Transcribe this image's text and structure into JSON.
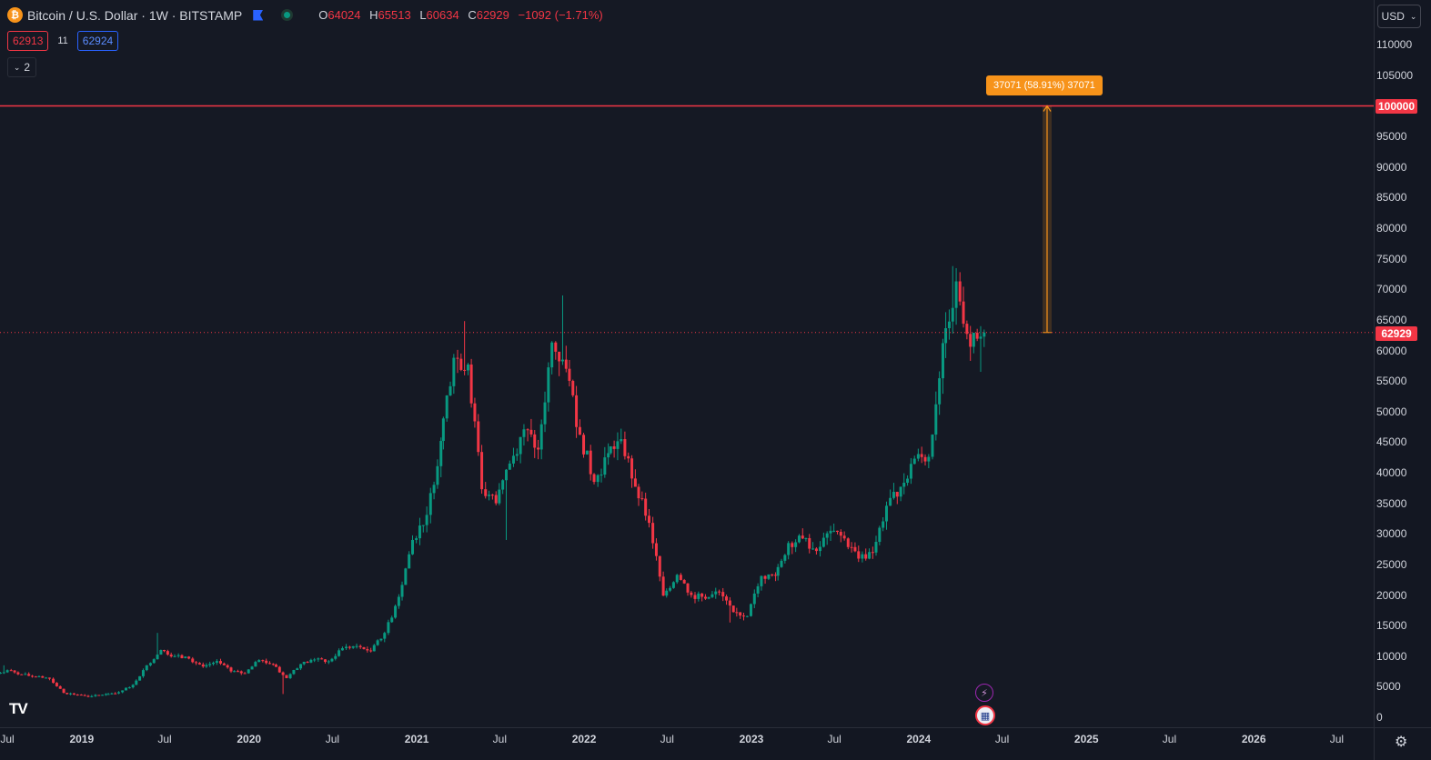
{
  "header": {
    "symbol_icon": "bitcoin-icon",
    "title": "Bitcoin / U.S. Dollar · 1W · BITSTAMP",
    "ohlc": {
      "o_label": "O",
      "o": "64024",
      "h_label": "H",
      "h": "65513",
      "l_label": "L",
      "l": "60634",
      "c_label": "C",
      "c": "62929",
      "change": "−1092 (−1.71%)"
    },
    "bid": "62913",
    "spread": "11",
    "ask": "62924",
    "indicator_count": "2"
  },
  "currency_button": "USD",
  "price_axis_labels": [
    "110000",
    "105000",
    "100000",
    "95000",
    "90000",
    "85000",
    "80000",
    "75000",
    "70000",
    "65000",
    "60000",
    "55000",
    "50000",
    "45000",
    "40000",
    "35000",
    "30000",
    "25000",
    "20000",
    "15000",
    "10000",
    "5000",
    "0"
  ],
  "hline_tag": "100000",
  "last_price_tag": "62929",
  "measure_label": "37071 (58.91%) 37071",
  "time_axis_labels": [
    {
      "text": "Jul",
      "bold": false
    },
    {
      "text": "2019",
      "bold": true
    },
    {
      "text": "Jul",
      "bold": false
    },
    {
      "text": "2020",
      "bold": true
    },
    {
      "text": "Jul",
      "bold": false
    },
    {
      "text": "2021",
      "bold": true
    },
    {
      "text": "Jul",
      "bold": false
    },
    {
      "text": "2022",
      "bold": true
    },
    {
      "text": "Jul",
      "bold": false
    },
    {
      "text": "2023",
      "bold": true
    },
    {
      "text": "Jul",
      "bold": false
    },
    {
      "text": "2024",
      "bold": true
    },
    {
      "text": "Jul",
      "bold": false
    },
    {
      "text": "2025",
      "bold": true
    },
    {
      "text": "Jul",
      "bold": false
    },
    {
      "text": "2026",
      "bold": true
    },
    {
      "text": "Jul",
      "bold": false
    }
  ],
  "logo": "TV",
  "colors": {
    "up": "#089981",
    "down": "#f23645",
    "hline": "#f23645",
    "measure": "#f7931a"
  },
  "chart_data": {
    "type": "candlestick",
    "symbol": "BTCUSD",
    "interval": "1W",
    "y_range": [
      0,
      115000
    ],
    "x_range": [
      "2018-06",
      "2026-08"
    ],
    "horizontal_line": 100000,
    "last_close": 62929,
    "measure": {
      "from": 62929,
      "to": 100000,
      "diff": 37071,
      "percent": "58.91%"
    },
    "monthly_closes": [
      {
        "t": "2018-07",
        "c": 7700
      },
      {
        "t": "2018-08",
        "c": 7000
      },
      {
        "t": "2018-09",
        "c": 6600
      },
      {
        "t": "2018-10",
        "c": 6300
      },
      {
        "t": "2018-11",
        "c": 4000
      },
      {
        "t": "2018-12",
        "c": 3700
      },
      {
        "t": "2019-01",
        "c": 3450
      },
      {
        "t": "2019-02",
        "c": 3800
      },
      {
        "t": "2019-03",
        "c": 4100
      },
      {
        "t": "2019-04",
        "c": 5300
      },
      {
        "t": "2019-05",
        "c": 8500
      },
      {
        "t": "2019-06",
        "c": 11000
      },
      {
        "t": "2019-07",
        "c": 10000
      },
      {
        "t": "2019-08",
        "c": 9600
      },
      {
        "t": "2019-09",
        "c": 8300
      },
      {
        "t": "2019-10",
        "c": 9200
      },
      {
        "t": "2019-11",
        "c": 7500
      },
      {
        "t": "2019-12",
        "c": 7200
      },
      {
        "t": "2020-01",
        "c": 9350
      },
      {
        "t": "2020-02",
        "c": 8600
      },
      {
        "t": "2020-03",
        "c": 6400
      },
      {
        "t": "2020-04",
        "c": 8700
      },
      {
        "t": "2020-05",
        "c": 9450
      },
      {
        "t": "2020-06",
        "c": 9150
      },
      {
        "t": "2020-07",
        "c": 11300
      },
      {
        "t": "2020-08",
        "c": 11650
      },
      {
        "t": "2020-09",
        "c": 10800
      },
      {
        "t": "2020-10",
        "c": 13800
      },
      {
        "t": "2020-11",
        "c": 19700
      },
      {
        "t": "2020-12",
        "c": 29000
      },
      {
        "t": "2021-01",
        "c": 33100
      },
      {
        "t": "2021-02",
        "c": 45200
      },
      {
        "t": "2021-03",
        "c": 58800
      },
      {
        "t": "2021-04",
        "c": 57700
      },
      {
        "t": "2021-05",
        "c": 37300
      },
      {
        "t": "2021-06",
        "c": 35000
      },
      {
        "t": "2021-07",
        "c": 41500
      },
      {
        "t": "2021-08",
        "c": 47100
      },
      {
        "t": "2021-09",
        "c": 43800
      },
      {
        "t": "2021-10",
        "c": 61300
      },
      {
        "t": "2021-11",
        "c": 57000
      },
      {
        "t": "2021-12",
        "c": 46200
      },
      {
        "t": "2022-01",
        "c": 38500
      },
      {
        "t": "2022-02",
        "c": 43200
      },
      {
        "t": "2022-03",
        "c": 45500
      },
      {
        "t": "2022-04",
        "c": 37700
      },
      {
        "t": "2022-05",
        "c": 31800
      },
      {
        "t": "2022-06",
        "c": 19900
      },
      {
        "t": "2022-07",
        "c": 23300
      },
      {
        "t": "2022-08",
        "c": 20000
      },
      {
        "t": "2022-09",
        "c": 19400
      },
      {
        "t": "2022-10",
        "c": 20500
      },
      {
        "t": "2022-11",
        "c": 17200
      },
      {
        "t": "2022-12",
        "c": 16550
      },
      {
        "t": "2023-01",
        "c": 23100
      },
      {
        "t": "2023-02",
        "c": 23150
      },
      {
        "t": "2023-03",
        "c": 28500
      },
      {
        "t": "2023-04",
        "c": 29250
      },
      {
        "t": "2023-05",
        "c": 27200
      },
      {
        "t": "2023-06",
        "c": 30500
      },
      {
        "t": "2023-07",
        "c": 29250
      },
      {
        "t": "2023-08",
        "c": 25950
      },
      {
        "t": "2023-09",
        "c": 26950
      },
      {
        "t": "2023-10",
        "c": 34600
      },
      {
        "t": "2023-11",
        "c": 37700
      },
      {
        "t": "2023-12",
        "c": 42300
      },
      {
        "t": "2024-01",
        "c": 42600
      },
      {
        "t": "2024-02",
        "c": 61200
      },
      {
        "t": "2024-03",
        "c": 71300
      },
      {
        "t": "2024-04",
        "c": 60600
      },
      {
        "t": "2024-05",
        "c": 62929
      }
    ],
    "peaks": [
      {
        "t": "2018-07",
        "h": 8500
      },
      {
        "t": "2019-06",
        "h": 13800
      },
      {
        "t": "2020-03",
        "l": 3800
      },
      {
        "t": "2021-04",
        "h": 64800
      },
      {
        "t": "2021-07",
        "l": 29000
      },
      {
        "t": "2021-11",
        "h": 69000
      },
      {
        "t": "2022-11",
        "l": 15500
      },
      {
        "t": "2024-03",
        "h": 73800
      },
      {
        "t": "2024-05",
        "l": 56500
      }
    ]
  }
}
